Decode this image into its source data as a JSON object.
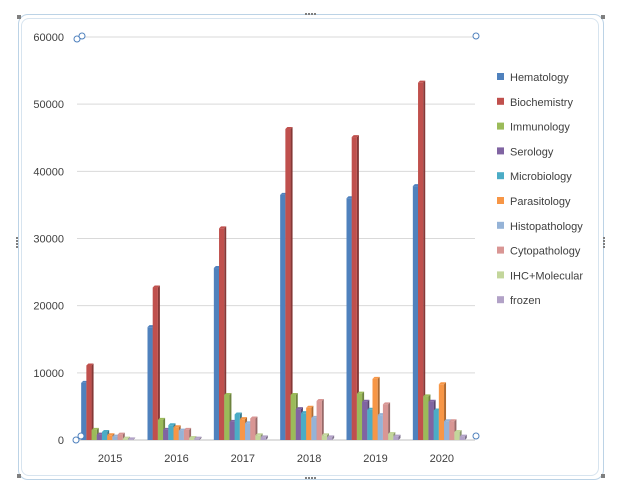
{
  "chart_data": {
    "type": "bar",
    "categories": [
      "2015",
      "2016",
      "2017",
      "2018",
      "2019",
      "2020"
    ],
    "ylim": [
      0,
      60000
    ],
    "yticks": [
      "0",
      "10000",
      "20000",
      "30000",
      "40000",
      "50000",
      "60000"
    ],
    "grid": true,
    "legend_position": "right",
    "series": [
      {
        "name": "Hematology",
        "color": "#4f81bd",
        "values": [
          8500,
          16800,
          25600,
          36500,
          36000,
          37800
        ]
      },
      {
        "name": "Biochemistry",
        "color": "#c0504d",
        "values": [
          11100,
          22700,
          31500,
          46300,
          45100,
          53200
        ]
      },
      {
        "name": "Immunology",
        "color": "#9bbb59",
        "values": [
          1500,
          3000,
          6700,
          6700,
          6900,
          6500
        ]
      },
      {
        "name": "Serology",
        "color": "#8064a2",
        "values": [
          800,
          1500,
          2700,
          4600,
          5700,
          5700
        ]
      },
      {
        "name": "Microbiology",
        "color": "#4bacc6",
        "values": [
          1200,
          2200,
          3800,
          4000,
          4500,
          4400
        ]
      },
      {
        "name": "Parasitology",
        "color": "#f79646",
        "values": [
          700,
          1900,
          3100,
          4800,
          9100,
          8300
        ]
      },
      {
        "name": "Histopathology",
        "color": "#95b3d7",
        "values": [
          500,
          1400,
          2500,
          3300,
          3700,
          2800
        ]
      },
      {
        "name": "Cytopathology",
        "color": "#d99694",
        "values": [
          800,
          1500,
          3200,
          5800,
          5300,
          2800
        ]
      },
      {
        "name": "IHC+Molecular",
        "color": "#c3d69b",
        "values": [
          200,
          300,
          700,
          700,
          900,
          1200
        ]
      },
      {
        "name": "frozen",
        "color": "#b2a2c7",
        "values": [
          100,
          200,
          400,
          400,
          500,
          500
        ]
      }
    ]
  }
}
